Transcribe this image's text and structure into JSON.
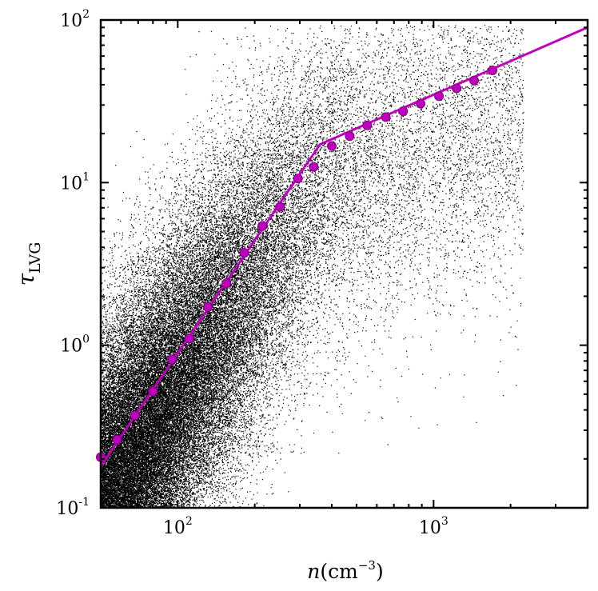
{
  "chart_data": {
    "type": "scatter",
    "xscale": "log",
    "yscale": "log",
    "xlim": [
      50,
      4000
    ],
    "ylim": [
      0.1,
      100
    ],
    "xlabel": "n(cm⁻³)",
    "ylabel": "τLVG",
    "x_ticks": [
      {
        "value": 100,
        "base": "10",
        "exp": "2"
      },
      {
        "value": 1000,
        "base": "10",
        "exp": "3"
      }
    ],
    "y_ticks": [
      {
        "value": 0.1,
        "base": "10",
        "exp": "-1"
      },
      {
        "value": 1,
        "base": "10",
        "exp": "0"
      },
      {
        "value": 10,
        "base": "10",
        "exp": "1"
      },
      {
        "value": 100,
        "base": "10",
        "exp": "2"
      }
    ],
    "grid": false,
    "legend": "none",
    "colors": {
      "points": "#000000",
      "fit": "#c000c0",
      "markers": "#c000c0"
    },
    "series": [
      {
        "kind": "binned_means",
        "x": [
          50,
          58,
          68,
          80,
          95,
          111,
          131,
          155,
          182,
          214,
          251,
          295,
          340,
          400,
          470,
          550,
          650,
          760,
          890,
          1050,
          1230,
          1440,
          1700
        ],
        "y": [
          0.205,
          0.262,
          0.37,
          0.52,
          0.82,
          1.1,
          1.72,
          2.4,
          3.7,
          5.4,
          7.1,
          10.6,
          12.5,
          16.8,
          19.3,
          22.5,
          25.3,
          27.5,
          30.6,
          34.0,
          38.0,
          42.5,
          49.0
        ]
      },
      {
        "kind": "fit_line",
        "x": [
          50,
          360,
          4000
        ],
        "y": [
          0.18,
          17.2,
          90
        ]
      }
    ],
    "cloud": {
      "count": 70000,
      "density_peak_log_n": 1.7,
      "ridge_slope": 2.32,
      "spread_dex": 0.5
    }
  }
}
